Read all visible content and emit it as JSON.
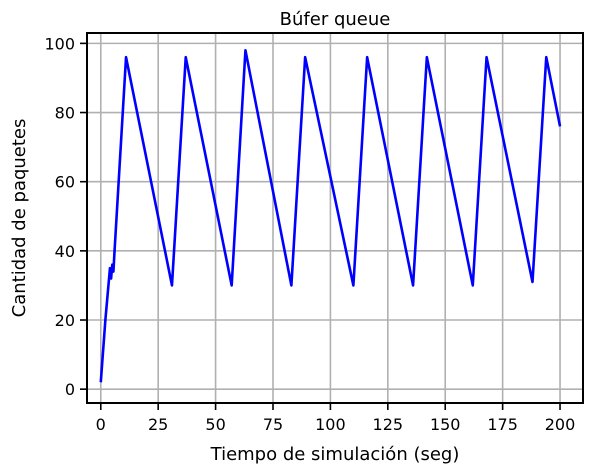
{
  "chart_data": {
    "type": "line",
    "title": "Búfer queue",
    "xlabel": "Tiempo de simulación (seg)",
    "ylabel": "Cantidad de paquetes",
    "xlim": [
      -6,
      210
    ],
    "ylim": [
      -4,
      103
    ],
    "xticks": [
      0,
      25,
      50,
      75,
      100,
      125,
      150,
      175,
      200
    ],
    "yticks": [
      0,
      20,
      40,
      60,
      80,
      100
    ],
    "grid": true,
    "colors": {
      "series": "#0000ff",
      "grid": "#b0b0b0",
      "axes": "#000000"
    },
    "series": [
      {
        "x": [
          0,
          2,
          4,
          4.5,
          5,
          5.5,
          6,
          11,
          31,
          37,
          57,
          63,
          83,
          89,
          110,
          116,
          136,
          142,
          162,
          168,
          188,
          194,
          200
        ],
        "y": [
          2,
          20,
          35,
          32,
          36,
          34,
          40,
          96,
          30,
          96,
          30,
          98,
          30,
          96,
          30,
          96,
          30,
          96,
          30,
          96,
          31,
          96,
          76
        ]
      }
    ]
  }
}
